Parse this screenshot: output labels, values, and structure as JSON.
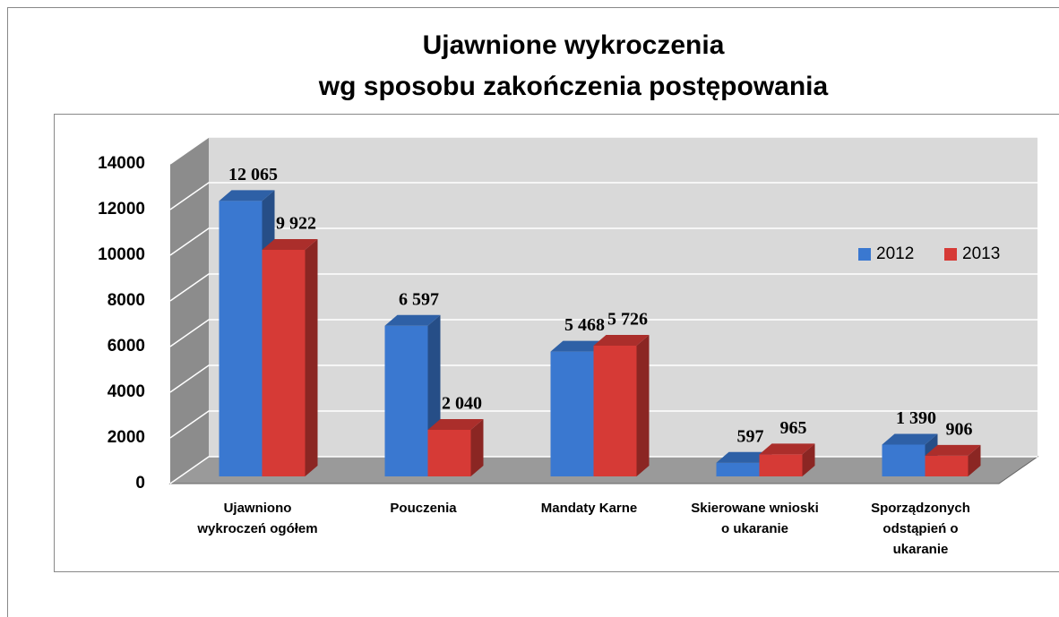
{
  "chart_data": {
    "type": "bar3d",
    "title": [
      "Ujawnione wykroczenia",
      "wg sposobu zakończenia postępowania"
    ],
    "categories": [
      "Ujawniono wykroczeń ogółem",
      "Pouczenia",
      "Mandaty Karne",
      "Skierowane wnioski o ukaranie",
      "Sporządzonych odstąpień o ukaranie"
    ],
    "series": [
      {
        "name": "2012",
        "color": "#3a78d0",
        "values": [
          12065,
          6597,
          5468,
          597,
          1390
        ],
        "value_labels": [
          "12 065",
          "6 597",
          "5 468",
          "597",
          "1 390"
        ]
      },
      {
        "name": "2013",
        "color": "#d63a36",
        "values": [
          9922,
          2040,
          5726,
          965,
          906
        ],
        "value_labels": [
          "9 922",
          "2 040",
          "5 726",
          "965",
          "906"
        ]
      }
    ],
    "ylim": [
      0,
      14000
    ],
    "yticks": [
      0,
      2000,
      4000,
      6000,
      8000,
      10000,
      12000,
      14000
    ],
    "grid": true,
    "legend": "right"
  }
}
